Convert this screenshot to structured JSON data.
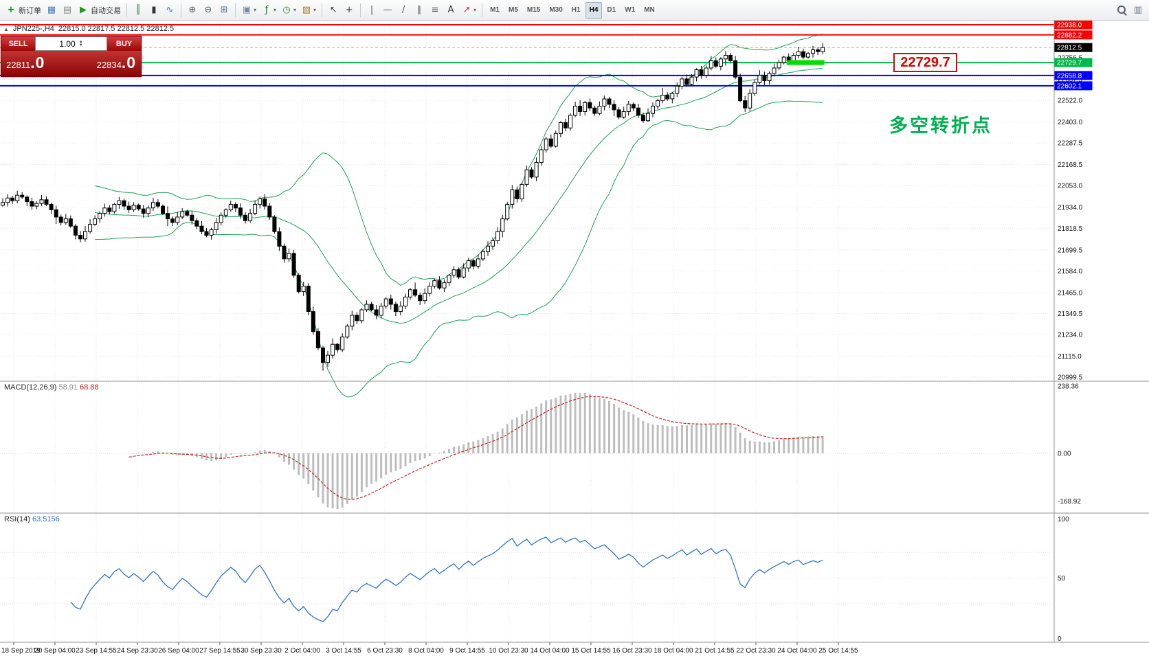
{
  "colors": {
    "grid": "#e6e6e6",
    "candle_up": "#ffffff",
    "candle_down": "#000000",
    "candle_outline": "#000000",
    "bollinger": "#1aa251",
    "macd_bar": "#bdbdbd",
    "macd_signal": "#d02020",
    "rsi_line": "#2e74c9",
    "axis_border": "#909090",
    "highlight": "#00dd00",
    "sell_red": "#9e0505",
    "buy_red": "#c23232"
  },
  "toolbar": {
    "groups": [
      {
        "items": [
          {
            "name": "new-order-button",
            "icon": "new-order-icon",
            "glyph": "+",
            "color": "#0a8f0a",
            "bold": true,
            "label": "新订单"
          },
          {
            "name": "chart-list-button",
            "icon": "charts-icon",
            "glyph": "▦",
            "color": "#4a7ab5"
          },
          {
            "name": "market-watch-button",
            "icon": "market-watch-icon",
            "glyph": "▤",
            "color": "#888888"
          },
          {
            "name": "auto-trading-button",
            "icon": "auto-trading-icon",
            "glyph": "▶",
            "color": "#18a018",
            "label": "自动交易"
          },
          {
            "type": "sep"
          },
          {
            "name": "bar-chart-button",
            "icon": "bar-chart-icon",
            "glyph": "║",
            "color": "#3a7a3a"
          },
          {
            "name": "candlestick-chart-button",
            "icon": "candlestick-icon",
            "glyph": "▮",
            "color": "#333333"
          },
          {
            "name": "line-chart-button",
            "icon": "line-chart-icon",
            "glyph": "∿",
            "color": "#3a6ab0"
          },
          {
            "type": "sep"
          },
          {
            "name": "zoom-in-button",
            "icon": "zoom-in-icon",
            "glyph": "⊕",
            "color": "#555555"
          },
          {
            "name": "zoom-out-button",
            "icon": "zoom-out-icon",
            "glyph": "⊖",
            "color": "#555555"
          },
          {
            "name": "tile-windows-button",
            "icon": "tile-windows-icon",
            "glyph": "⊞",
            "color": "#557799"
          },
          {
            "type": "sep"
          },
          {
            "name": "arrange-charts-button",
            "icon": "arrange-icon",
            "glyph": "▣",
            "color": "#7788aa",
            "caret": true
          },
          {
            "name": "indicators-button",
            "icon": "indicators-icon",
            "glyph": "ƒ",
            "color": "#0a7a0a",
            "caret": true
          },
          {
            "name": "periods-button",
            "icon": "clock-icon",
            "glyph": "◷",
            "color": "#2a8a2a",
            "caret": true
          },
          {
            "name": "templates-button",
            "icon": "templates-icon",
            "glyph": "▨",
            "color": "#aa7733",
            "caret": true
          },
          {
            "type": "sep"
          },
          {
            "name": "cursor-button",
            "icon": "cursor-icon",
            "glyph": "↖",
            "color": "#333333"
          },
          {
            "name": "crosshair-button",
            "icon": "crosshair-icon",
            "glyph": "+",
            "color": "#333333"
          },
          {
            "type": "sep"
          },
          {
            "name": "vertical-line-button",
            "icon": "vertical-line-icon",
            "glyph": "|",
            "color": "#555555"
          },
          {
            "name": "horizontal-line-button",
            "icon": "horizontal-line-icon",
            "glyph": "—",
            "color": "#555555"
          },
          {
            "name": "trendline-button",
            "icon": "trendline-icon",
            "glyph": "/",
            "color": "#555555"
          },
          {
            "name": "channel-button",
            "icon": "channel-icon",
            "glyph": "∥",
            "color": "#555555"
          },
          {
            "name": "fibonacci-button",
            "icon": "fibonacci-icon",
            "glyph": "≡",
            "color": "#555555"
          },
          {
            "name": "text-button",
            "icon": "text-icon",
            "glyph": "A",
            "color": "#333333"
          },
          {
            "name": "arrows-button",
            "icon": "arrow-tool-icon",
            "glyph": "↗",
            "color": "#aa3333",
            "caret": true
          },
          {
            "type": "sep"
          }
        ]
      },
      {
        "timeframes": [
          "M1",
          "M5",
          "M15",
          "M30",
          "H1",
          "H4",
          "D1",
          "W1",
          "MN"
        ],
        "active": "H4"
      },
      {
        "right": true,
        "items": [
          {
            "name": "symbol-search-button",
            "icon": "magnifier-icon",
            "mag": true
          },
          {
            "name": "chart-settings-button",
            "icon": "settings-icon",
            "glyph": "▥",
            "color": "#667788"
          }
        ]
      }
    ]
  },
  "chart_info": {
    "symbol_period": "JPN225-,H4",
    "ohlc": "22815.0 22817.5 22812.5 22812.5"
  },
  "trade_panel": {
    "sell_label": "SELL",
    "buy_label": "BUY",
    "lot": "1.00",
    "sell_price_main": "22811",
    "sell_price_frac": ".0",
    "buy_price_main": "22834",
    "buy_price_frac": ".0"
  },
  "annotations": {
    "callout": "22729.7",
    "note": "多空转折点"
  },
  "chart_data": {
    "type": "candlestick",
    "symbol": "JPN225-",
    "timeframe": "H4",
    "price_axis": {
      "max": 22938.0,
      "min": 20999.5,
      "scale_labels": [
        22756.5,
        22637.5,
        22522.0,
        22403.0,
        22287.5,
        22168.5,
        22053.0,
        21934.0,
        21818.5,
        21699.5,
        21584.0,
        21465.0,
        21349.5,
        21234.0,
        21115.0,
        20999.5
      ]
    },
    "time_labels": [
      "18 Sep 2019",
      "20 Sep 04:00",
      "23 Sep 14:55",
      "24 Sep 23:30",
      "26 Sep 04:00",
      "27 Sep 14:55",
      "30 Sep 23:30",
      "2 Oct 04:00",
      "3 Oct 14:55",
      "6 Oct 23:30",
      "8 Oct 04:00",
      "9 Oct 14:55",
      "10 Oct 23:30",
      "14 Oct 04:00",
      "15 Oct 14:55",
      "16 Oct 23:30",
      "18 Oct 04:00",
      "21 Oct 14:55",
      "22 Oct 23:30",
      "24 Oct 04:00",
      "25 Oct 14:55"
    ],
    "first_open": 21945,
    "closes": [
      21960,
      21985,
      21970,
      22000,
      21990,
      21965,
      21940,
      21955,
      21975,
      21950,
      21920,
      21880,
      21850,
      21870,
      21830,
      21780,
      21760,
      21800,
      21840,
      21870,
      21900,
      21930,
      21910,
      21950,
      21970,
      21940,
      21920,
      21945,
      21925,
      21900,
      21930,
      21960,
      21940,
      21900,
      21870,
      21850,
      21880,
      21910,
      21890,
      21860,
      21830,
      21800,
      21780,
      21810,
      21850,
      21890,
      21920,
      21950,
      21930,
      21890,
      21860,
      21900,
      21950,
      21980,
      21940,
      21880,
      21800,
      21720,
      21650,
      21680,
      21560,
      21470,
      21500,
      21360,
      21250,
      21160,
      21080,
      21120,
      21180,
      21150,
      21220,
      21280,
      21340,
      21310,
      21370,
      21400,
      21370,
      21340,
      21390,
      21430,
      21400,
      21360,
      21390,
      21440,
      21480,
      21450,
      21420,
      21460,
      21500,
      21530,
      21490,
      21520,
      21560,
      21590,
      21550,
      21600,
      21640,
      21610,
      21650,
      21690,
      21720,
      21750,
      21800,
      21870,
      21950,
      22030,
      21980,
      22060,
      22140,
      22100,
      22180,
      22250,
      22310,
      22270,
      22340,
      22400,
      22370,
      22440,
      22490,
      22460,
      22510,
      22480,
      22450,
      22490,
      22530,
      22500,
      22470,
      22430,
      22460,
      22500,
      22480,
      22440,
      22410,
      22450,
      22490,
      22520,
      22550,
      22530,
      22560,
      22600,
      22640,
      22610,
      22650,
      22690,
      22660,
      22700,
      22740,
      22710,
      22750,
      22770,
      22740,
      22650,
      22520,
      22480,
      22560,
      22620,
      22660,
      22630,
      22670,
      22700,
      22730,
      22760,
      22740,
      22770,
      22790,
      22760,
      22780,
      22800,
      22790,
      22812.5
    ],
    "bollinger": {
      "period": 20,
      "deviation": 2
    },
    "hlines": [
      {
        "price": 22938.0,
        "color": "#ff0000",
        "width": 2,
        "tag": "22938.0",
        "tagColor": "#ff0000"
      },
      {
        "price": 22882.2,
        "color": "#ff0000",
        "width": 2,
        "tag": "22882.2",
        "tagColor": "#ff0000"
      },
      {
        "price": 22812.5,
        "style": "current",
        "tag": "22812.5",
        "tagColor": "#000000"
      },
      {
        "price": 22729.7,
        "color": "#00b84c",
        "width": 2,
        "tag": "22729.7",
        "tagColor": "#00b84c"
      },
      {
        "price": 22658.8,
        "color": "#0000ff",
        "width": 2,
        "tag": "22658.8",
        "tagColor": "#0000ff"
      },
      {
        "price": 22602.1,
        "color": "#0000ff",
        "width": 2,
        "tag": "22602.1",
        "tagColor": "#0000ff"
      }
    ],
    "highlight_segment": {
      "price": 22729.7,
      "from_candle": 162,
      "to_candle": 169
    },
    "macd": {
      "label": "MACD(12,26,9)",
      "value1": "58.91",
      "value2": "68.88",
      "axis_labels": [
        "238.36",
        "0.00",
        "-168.92"
      ],
      "axis_values": [
        238.36,
        0,
        -168.92
      ]
    },
    "rsi": {
      "label": "RSI(14)",
      "value": "63.5156",
      "period": 14,
      "axis_labels": [
        "100",
        "50",
        "0"
      ],
      "axis_values": [
        100,
        50,
        0
      ],
      "level_lines": [
        70,
        50,
        30
      ]
    }
  }
}
